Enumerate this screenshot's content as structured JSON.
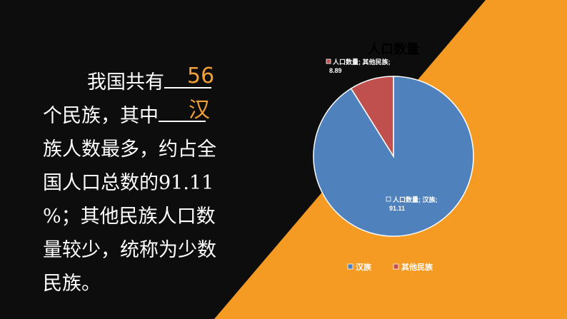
{
  "colors": {
    "background": "#0d0d0d",
    "accent_orange": "#f59a23",
    "answer_text": "#f0a035",
    "han": "#4f81bd",
    "others": "#c0504d"
  },
  "text": {
    "line1_pre": "我国共有",
    "line2": "个民族，其中",
    "line3": "族人数最多，约占全",
    "line4": "国人口总数的91.11",
    "line5": "%；其他民族人口数",
    "line6": "量较少，统称为少数",
    "line7": "民族。"
  },
  "answers": {
    "count": "56",
    "han": "汉"
  },
  "chart_data": {
    "type": "pie",
    "title": "人口数量",
    "categories": [
      "汉族",
      "其他民族"
    ],
    "values": [
      91.11,
      8.89
    ],
    "series": [
      {
        "name": "人口数量",
        "values": [
          91.11,
          8.89
        ]
      }
    ],
    "data_labels": [
      {
        "series": "人口数量",
        "category": "汉族",
        "value": "91.11",
        "text_line1": "人口数量; 汉族;",
        "text_line2": "91.11"
      },
      {
        "series": "人口数量",
        "category": "其他民族",
        "value": "8.89",
        "text_line1": "人口数量; 其他民族;",
        "text_line2": "8.89"
      }
    ],
    "legend": {
      "placement": "bottom",
      "entries": [
        "汉族",
        "其他民族"
      ]
    }
  }
}
